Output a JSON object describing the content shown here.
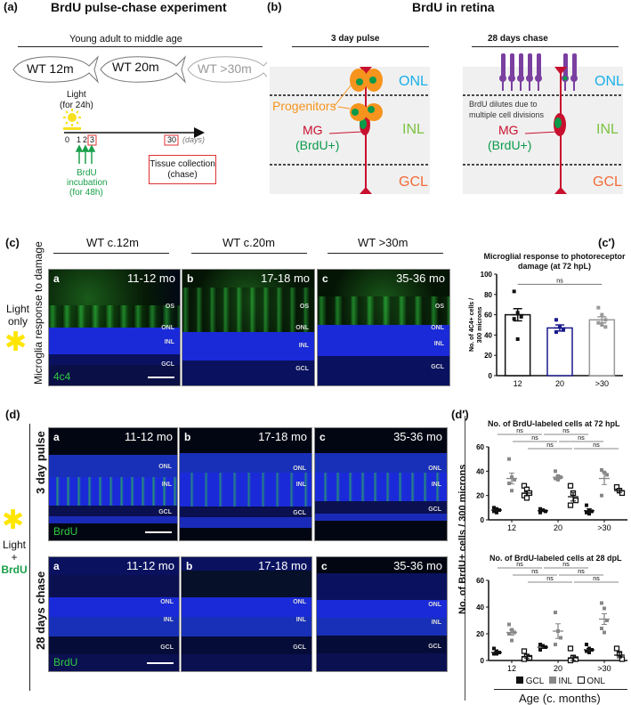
{
  "panel_a": {
    "label": "(a)",
    "title": "BrdU pulse-chase experiment",
    "age_range": "Young adult to middle age",
    "fish": [
      {
        "label": "WT 12m",
        "color": "#111111"
      },
      {
        "label": "WT 20m",
        "color": "#111111"
      },
      {
        "label": "WT >30m",
        "color": "#999999"
      }
    ],
    "light_label_1": "Light",
    "light_label_2": "(for 24h)",
    "timeline_ticks": [
      "0",
      "1",
      "2",
      "3",
      "30"
    ],
    "timeline_unit": "(days)",
    "brdu_1": "BrdU",
    "brdu_2": "incubation",
    "brdu_3": "(for 48h)",
    "tissue_1": "Tissue collection",
    "tissue_2": "(chase)"
  },
  "panel_b": {
    "label": "(b)",
    "title": "BrdU in retina",
    "left_title": "3 day pulse",
    "right_title": "28 days chase",
    "layers": [
      "ONL",
      "INL",
      "GCL"
    ],
    "progenitors": "Progenitors",
    "mg": "MG",
    "brdu_pos": "(BrdU+)",
    "dilute_1": "BrdU dilutes due to",
    "dilute_2": "multiple cell divisions",
    "colors": {
      "onl": "#1ab0e8",
      "inl": "#7cc242",
      "gcl": "#f26b3a",
      "mg": "#c8102e",
      "progenitor": "#f7941d",
      "brdu": "#0a9a4a",
      "rod": "#7b3fa0"
    }
  },
  "panel_c": {
    "label": "(c)",
    "columns": [
      "WT c.12m",
      "WT c.20m",
      "WT >30m"
    ],
    "row_label": "Microglia response to damage",
    "condition_1": "Light",
    "condition_2": "only",
    "images": [
      {
        "letter": "a",
        "age": "11-12 mo",
        "stain": "4c4"
      },
      {
        "letter": "b",
        "age": "17-18 mo",
        "stain": ""
      },
      {
        "letter": "c",
        "age": "35-36 mo",
        "stain": ""
      }
    ],
    "layers": [
      "OS",
      "ONL",
      "INL",
      "GCL"
    ]
  },
  "panel_c_prime": {
    "label": "(c′)",
    "title_1": "Microglial response to photoreceptor",
    "title_2": "damage (at 72 hpL)",
    "ylabel_1": "No. of 4C4+ cells /",
    "ylabel_2": "300 microns",
    "sig": "ns"
  },
  "panel_d": {
    "label": "(d)",
    "condition_1": "Light",
    "condition_2": "+",
    "condition_3": "BrdU",
    "rows": [
      {
        "label": "3 day pulse",
        "images": [
          {
            "letter": "a",
            "age": "11-12 mo",
            "stain": "BrdU"
          },
          {
            "letter": "b",
            "age": "17-18 mo",
            "stain": ""
          },
          {
            "letter": "c",
            "age": "35-36 mo",
            "stain": ""
          }
        ]
      },
      {
        "label": "28 days chase",
        "images": [
          {
            "letter": "a",
            "age": "11-12 mo",
            "stain": "BrdU"
          },
          {
            "letter": "b",
            "age": "17-18 mo",
            "stain": ""
          },
          {
            "letter": "c",
            "age": "35-36 mo",
            "stain": ""
          }
        ]
      }
    ],
    "layers": [
      "ONL",
      "INL",
      "GCL"
    ]
  },
  "panel_d_prime": {
    "label": "(d′)",
    "ylabel": "No. of BrdU+ cells / 300 microns",
    "xlabel": "Age (c. months)",
    "legend": [
      "GCL",
      "INL",
      "ONL"
    ]
  },
  "chart_data": [
    {
      "type": "bar",
      "title": "Microglial response to photoreceptor damage (at 72 hpL)",
      "xlabel": "",
      "ylabel": "No. of 4C4+ cells / 300 microns",
      "categories": [
        "12",
        "20",
        ">30"
      ],
      "values": [
        60,
        47,
        55
      ],
      "sem": [
        6,
        3,
        3
      ],
      "points": [
        [
          83,
          62,
          58,
          56,
          36
        ],
        [
          55,
          48,
          45,
          43
        ],
        [
          67,
          60,
          55,
          52,
          50,
          48
        ]
      ],
      "bar_colors": [
        "#111111",
        "#1a1a8c",
        "#999999"
      ],
      "ylim": [
        0,
        100
      ],
      "yticks": [
        0,
        20,
        40,
        60,
        80,
        100
      ],
      "annotations": [
        {
          "from": "12",
          "to": ">30",
          "text": "ns"
        }
      ]
    },
    {
      "type": "scatter",
      "title": "No. of BrdU-labeled cells at 72 hpL",
      "xlabel": "",
      "ylabel": "No. of BrdU+ cells / 300 microns",
      "categories": [
        "12",
        "20",
        ">30"
      ],
      "ylim": [
        0,
        60
      ],
      "yticks": [
        0,
        20,
        40,
        60
      ],
      "series": [
        {
          "name": "GCL",
          "means": [
            8,
            7.5,
            7.5
          ],
          "sem": [
            1,
            0.8,
            1.5
          ],
          "points": [
            [
              10,
              9,
              8,
              7,
              6
            ],
            [
              9,
              8,
              7,
              6
            ],
            [
              12,
              8,
              7,
              6,
              5
            ]
          ]
        },
        {
          "name": "INL",
          "means": [
            34,
            35,
            34
          ],
          "sem": [
            4.5,
            1.5,
            5
          ],
          "points": [
            [
              50,
              35,
              33,
              30,
              24
            ],
            [
              40,
              36,
              35,
              34,
              33
            ],
            [
              41,
              39,
              37,
              20
            ]
          ]
        },
        {
          "name": "ONL",
          "means": [
            22,
            19,
            24
          ],
          "sem": [
            2,
            3.5,
            1.5
          ],
          "points": [
            [
              28,
              25,
              22,
              20,
              18
            ],
            [
              28,
              22,
              16,
              12
            ],
            [
              27,
              24,
              22
            ]
          ]
        }
      ],
      "annotations": [
        "ns",
        "ns",
        "ns",
        "ns",
        "ns",
        "ns"
      ]
    },
    {
      "type": "scatter",
      "title": "No. of BrdU-labeled cells at 28 dpL",
      "xlabel": "Age (c. months)",
      "ylabel": "No. of BrdU+ cells / 300 microns",
      "categories": [
        "12",
        "20",
        ">30"
      ],
      "ylim": [
        0,
        60
      ],
      "yticks": [
        0,
        20,
        40,
        60
      ],
      "series": [
        {
          "name": "GCL",
          "means": [
            6,
            10,
            8
          ],
          "sem": [
            0.8,
            1,
            1
          ],
          "points": [
            [
              9,
              7,
              6,
              5,
              5
            ],
            [
              12,
              11,
              10,
              8
            ],
            [
              12,
              9,
              8,
              7,
              6
            ]
          ]
        },
        {
          "name": "INL",
          "means": [
            21,
            22,
            31
          ],
          "sem": [
            2,
            5.5,
            4
          ],
          "points": [
            [
              27,
              23,
              21,
              20,
              15
            ],
            [
              36,
              22,
              17,
              12
            ],
            [
              43,
              39,
              30,
              24,
              21
            ]
          ]
        },
        {
          "name": "ONL",
          "means": [
            3,
            2,
            4
          ],
          "sem": [
            1.5,
            2,
            2
          ],
          "points": [
            [
              7,
              3,
              2,
              1
            ],
            [
              9,
              2,
              1,
              0
            ],
            [
              9,
              5,
              1
            ]
          ]
        }
      ],
      "annotations": [
        "ns",
        "ns",
        "ns",
        "ns",
        "ns",
        "ns"
      ]
    }
  ]
}
